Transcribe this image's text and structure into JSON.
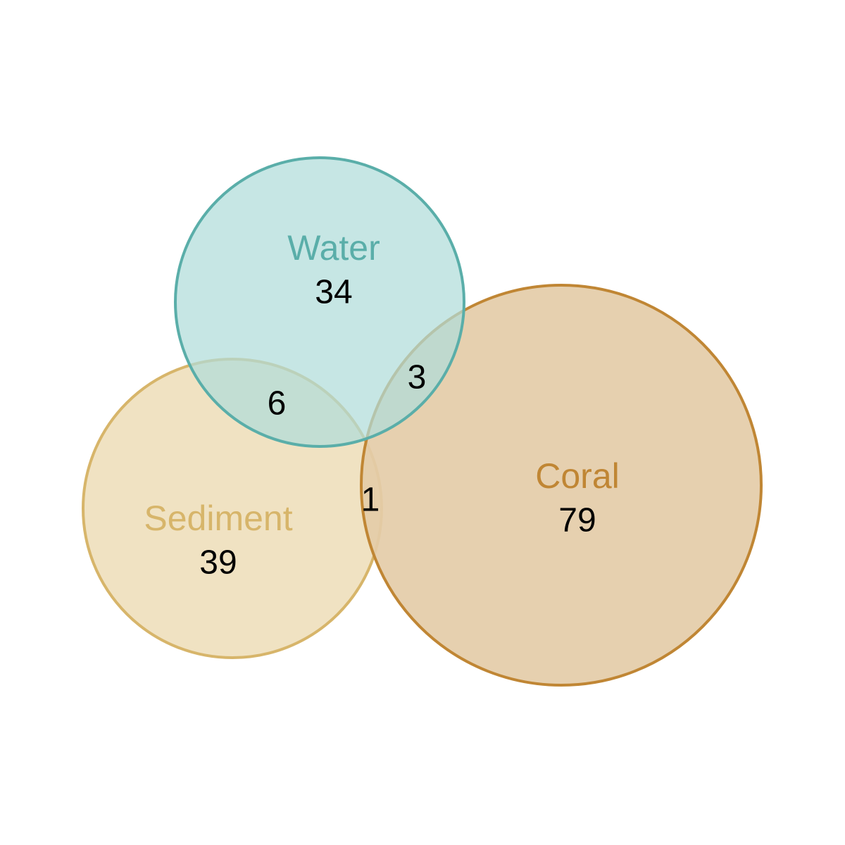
{
  "diagram": {
    "type": "venn",
    "sets": [
      {
        "key": "water",
        "label": "Water",
        "only_count": "34",
        "stroke": "#5aaea9",
        "fill": "#b0dcd9",
        "label_color": "#5aaea9"
      },
      {
        "key": "sediment",
        "label": "Sediment",
        "only_count": "39",
        "stroke": "#d7b56a",
        "fill": "#f0e2c2",
        "label_color": "#d7b56a"
      },
      {
        "key": "coral",
        "label": "Coral",
        "only_count": "79",
        "stroke": "#c08634",
        "fill": "#e4cca8",
        "label_color": "#c08634"
      }
    ],
    "intersections": {
      "water_sediment": "6",
      "water_coral": "3",
      "sediment_coral": "1"
    }
  }
}
